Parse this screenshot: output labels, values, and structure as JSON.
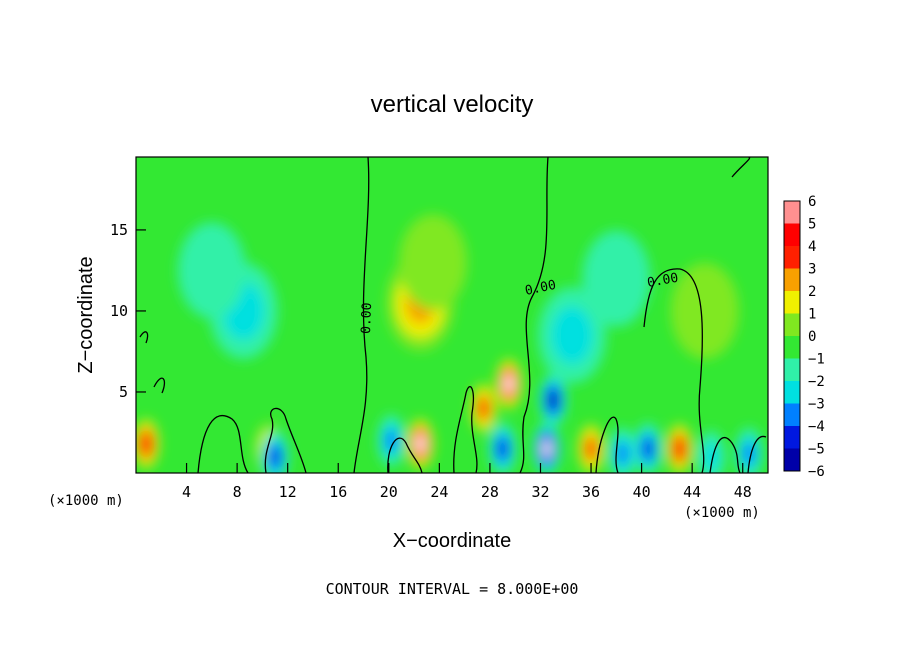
{
  "chart_data": {
    "type": "heatmap",
    "title": "vertical velocity",
    "xlabel": "X−coordinate",
    "ylabel": "Z−coordinate",
    "x_unit_label": "(×1000 m)",
    "x_ticks": [
      4,
      8,
      12,
      16,
      20,
      24,
      28,
      32,
      36,
      40,
      44,
      48
    ],
    "y_ticks": [
      5,
      10,
      15
    ],
    "xlim": [
      0,
      50
    ],
    "ylim": [
      0,
      19.5
    ],
    "contour_label": "0.00",
    "footer": "CONTOUR INTERVAL = 8.000E+00",
    "colorbar": {
      "ticks": [
        "6",
        "5",
        "4",
        "3",
        "2",
        "1",
        "0",
        "−1",
        "−2",
        "−3",
        "−4",
        "−5",
        "−6"
      ],
      "range": [
        -6,
        6
      ]
    },
    "features": [
      {
        "x": 0.8,
        "z": 1.8,
        "value": 4.5
      },
      {
        "x": 10.5,
        "z": 1.5,
        "value": 2.5
      },
      {
        "x": 11.0,
        "z": 1.0,
        "value": -4.0
      },
      {
        "x": 8.5,
        "z": 10.0,
        "value": -1.6
      },
      {
        "x": 6.0,
        "z": 12.5,
        "value": -1.0
      },
      {
        "x": 20.2,
        "z": 2.0,
        "value": -2.5
      },
      {
        "x": 22.5,
        "z": 1.8,
        "value": 6.0
      },
      {
        "x": 22.5,
        "z": 10.5,
        "value": 3.2
      },
      {
        "x": 23.5,
        "z": 13.0,
        "value": 1.2
      },
      {
        "x": 27.5,
        "z": 4.0,
        "value": 4.0
      },
      {
        "x": 29.5,
        "z": 5.5,
        "value": 6.0
      },
      {
        "x": 29.0,
        "z": 1.5,
        "value": -3.5
      },
      {
        "x": 33.0,
        "z": 4.5,
        "value": -5.2
      },
      {
        "x": 32.5,
        "z": 1.5,
        "value": -6.0
      },
      {
        "x": 36.0,
        "z": 1.5,
        "value": 4.0
      },
      {
        "x": 34.5,
        "z": 8.5,
        "value": -1.8
      },
      {
        "x": 38.5,
        "z": 1.2,
        "value": -3.0
      },
      {
        "x": 40.5,
        "z": 1.5,
        "value": -4.0
      },
      {
        "x": 43.0,
        "z": 1.5,
        "value": 4.5
      },
      {
        "x": 45.5,
        "z": 1.0,
        "value": -2.2
      },
      {
        "x": 48.5,
        "z": 1.2,
        "value": -2.8
      },
      {
        "x": 38.0,
        "z": 12.0,
        "value": -0.6
      },
      {
        "x": 45.0,
        "z": 10.0,
        "value": 0.6
      }
    ]
  }
}
